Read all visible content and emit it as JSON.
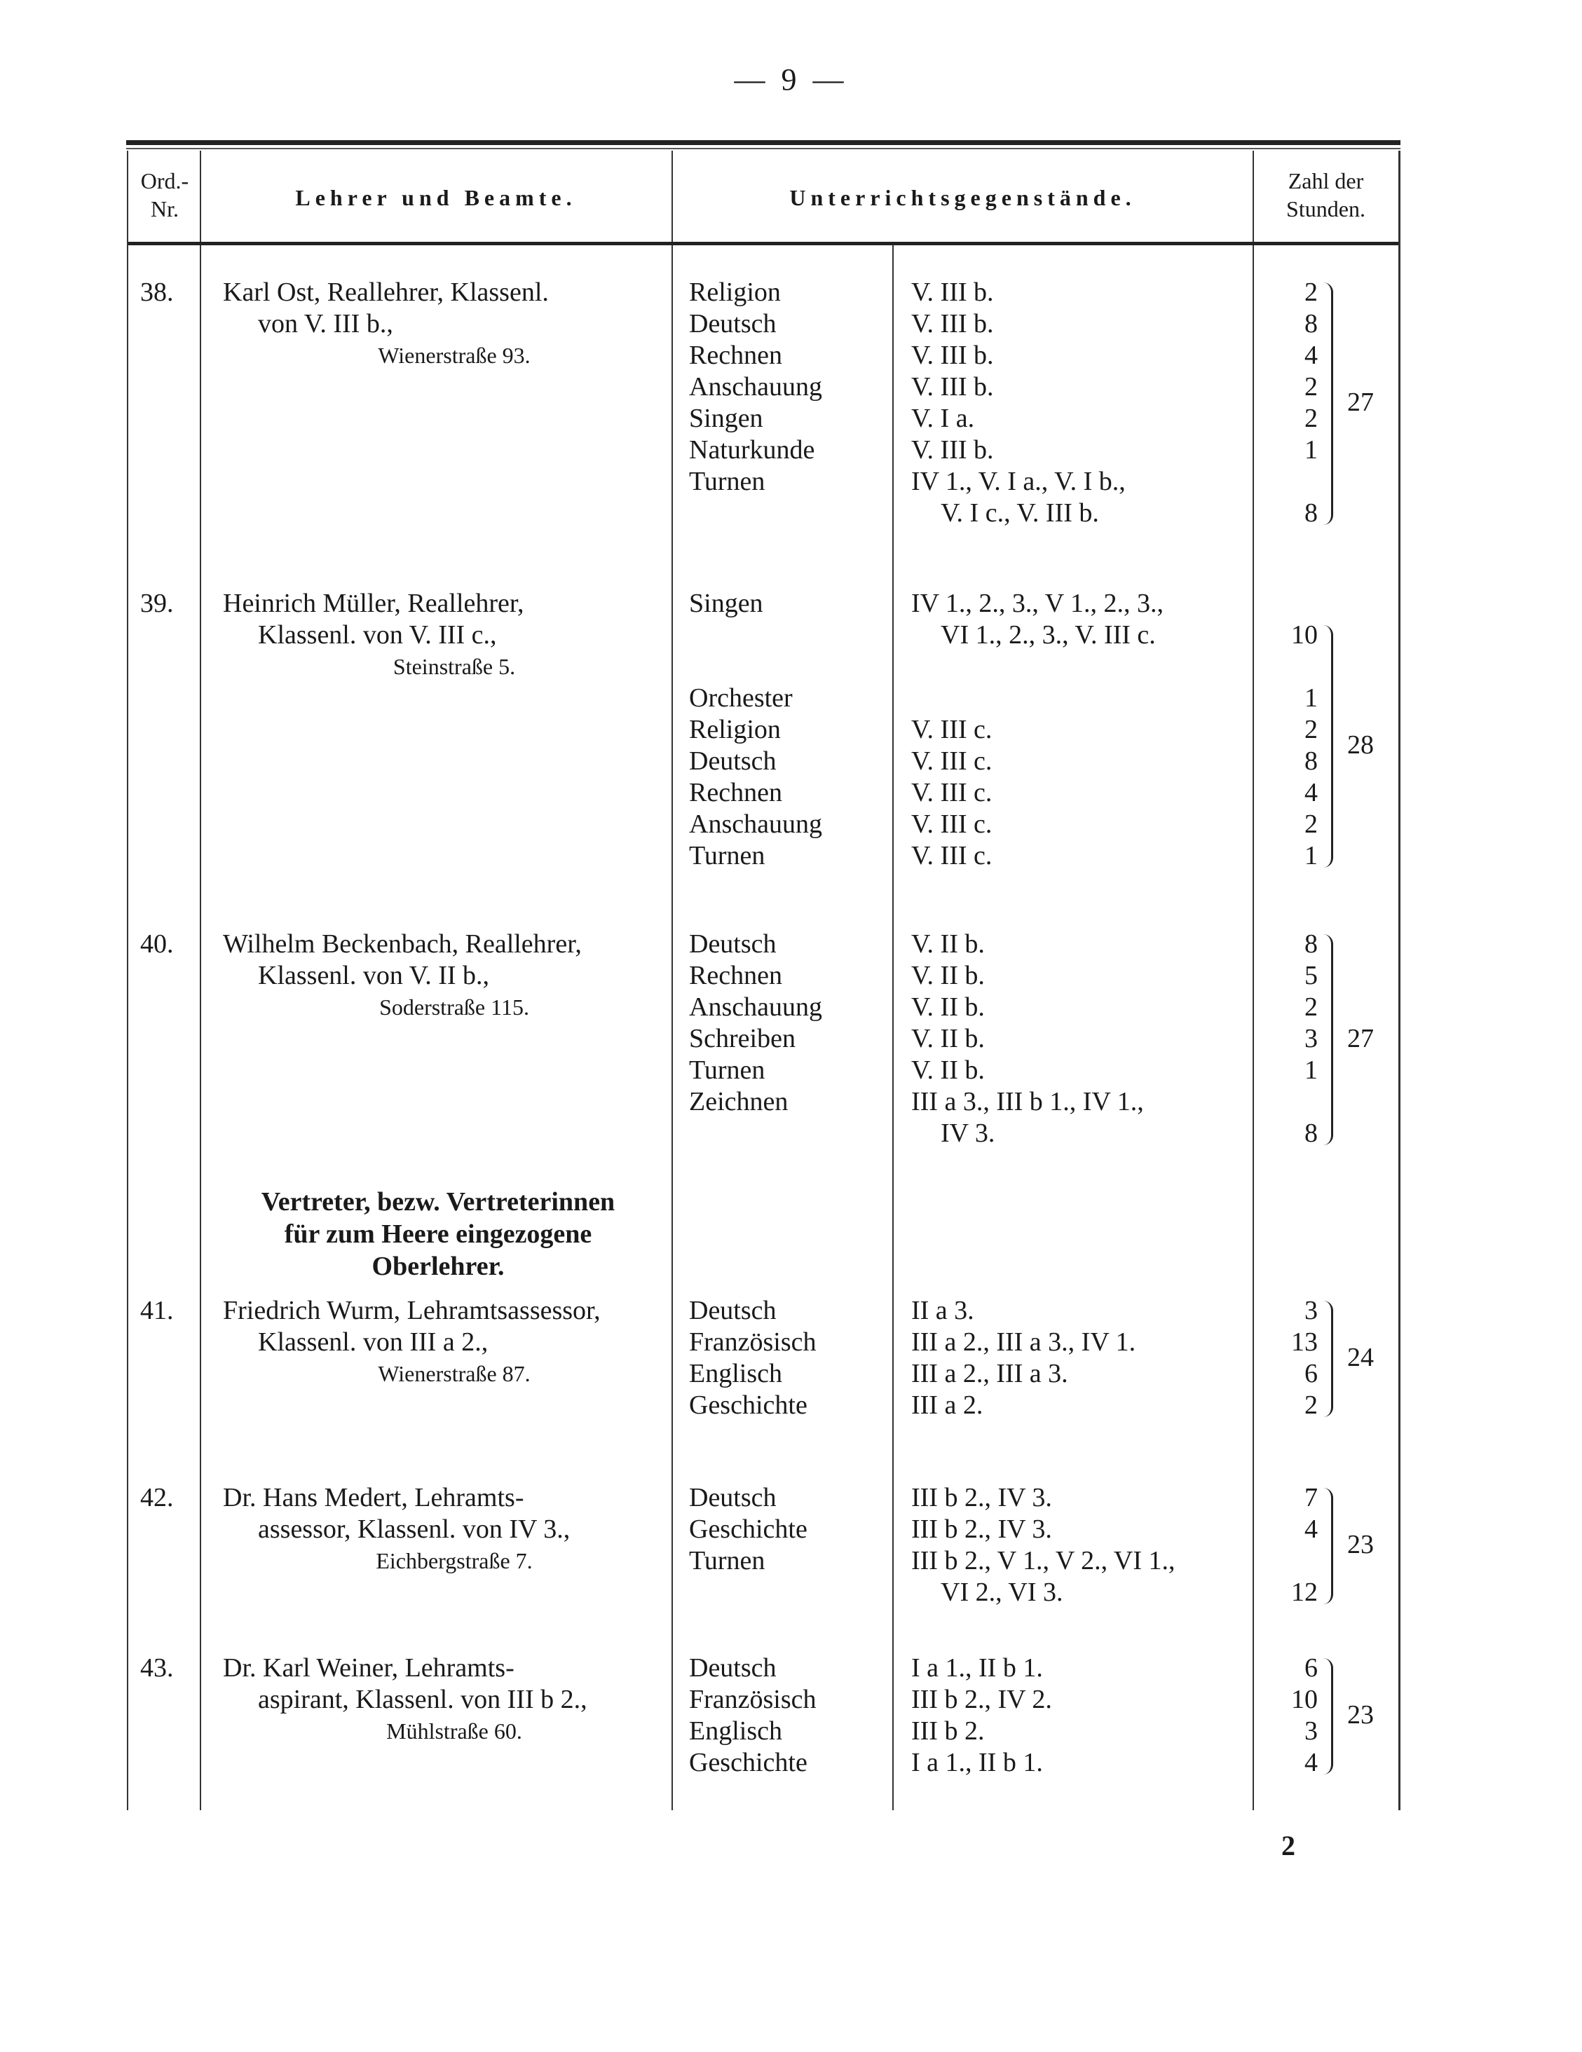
{
  "page_number": "— 9 —",
  "footer_mark": "2",
  "header": {
    "nr": [
      "Ord.-",
      "Nr."
    ],
    "teacher": "Lehrer und Beamte.",
    "subjects": "Unterrichtsgegenstände.",
    "hours": [
      "Zahl der",
      "Stunden."
    ]
  },
  "section_heading": [
    "Vertreter, bezw. Vertreterinnen",
    "für zum Heere eingezogene",
    "Oberlehrer."
  ],
  "entries": [
    {
      "nr": "38.",
      "name_lines": [
        "Karl Ost, Reallehrer, Klassenl.",
        "von V. III b.,"
      ],
      "address": "Wienerstraße 93.",
      "lines": [
        {
          "subject": "Religion",
          "classes": "V. III b.",
          "hours": "2"
        },
        {
          "subject": "Deutsch",
          "classes": "V. III b.",
          "hours": "8"
        },
        {
          "subject": "Rechnen",
          "classes": "V. III b.",
          "hours": "4"
        },
        {
          "subject": "Anschauung",
          "classes": "V. III b.",
          "hours": "2"
        },
        {
          "subject": "Singen",
          "classes": "V. I a.",
          "hours": "2"
        },
        {
          "subject": "Naturkunde",
          "classes": "V. III b.",
          "hours": "1"
        },
        {
          "subject": "Turnen",
          "classes": "IV 1., V. I a., V. I b.,",
          "hours": ""
        },
        {
          "subject": "",
          "classes": "V. I c., V. III b.",
          "hours": "8",
          "indent": true
        }
      ],
      "total": "27"
    },
    {
      "nr": "39.",
      "name_lines": [
        "Heinrich Müller, Reallehrer,",
        "Klassenl. von V. III c.,"
      ],
      "address": "Steinstraße 5.",
      "lines": [
        {
          "subject": "Singen",
          "classes": "IV 1., 2., 3., V 1., 2., 3.,",
          "hours": ""
        },
        {
          "subject": "",
          "classes": "VI 1., 2., 3., V. III c.",
          "hours": "10",
          "indent": true
        },
        {
          "subject": "",
          "classes": "",
          "hours": ""
        },
        {
          "subject": "Orchester",
          "classes": "",
          "hours": "1"
        },
        {
          "subject": "Religion",
          "classes": "V. III c.",
          "hours": "2"
        },
        {
          "subject": "Deutsch",
          "classes": "V. III c.",
          "hours": "8"
        },
        {
          "subject": "Rechnen",
          "classes": "V. III c.",
          "hours": "4"
        },
        {
          "subject": "Anschauung",
          "classes": "V. III c.",
          "hours": "2"
        },
        {
          "subject": "Turnen",
          "classes": "V. III c.",
          "hours": "1"
        }
      ],
      "total": "28"
    },
    {
      "nr": "40.",
      "name_lines": [
        "Wilhelm Beckenbach, Reallehrer,",
        "Klassenl. von V. II b.,"
      ],
      "address": "Soderstraße 115.",
      "lines": [
        {
          "subject": "Deutsch",
          "classes": "V. II b.",
          "hours": "8"
        },
        {
          "subject": "Rechnen",
          "classes": "V. II b.",
          "hours": "5"
        },
        {
          "subject": "Anschauung",
          "classes": "V. II b.",
          "hours": "2"
        },
        {
          "subject": "Schreiben",
          "classes": "V. II b.",
          "hours": "3"
        },
        {
          "subject": "Turnen",
          "classes": "V. II b.",
          "hours": "1"
        },
        {
          "subject": "Zeichnen",
          "classes": "III a 3., III b 1., IV 1.,",
          "hours": ""
        },
        {
          "subject": "",
          "classes": "IV 3.",
          "hours": "8",
          "indent": true
        }
      ],
      "total": "27"
    },
    {
      "nr": "41.",
      "name_lines": [
        "Friedrich Wurm, Lehramtsassessor,",
        "Klassenl. von III a 2.,"
      ],
      "address": "Wienerstraße 87.",
      "lines": [
        {
          "subject": "Deutsch",
          "classes": "II a 3.",
          "hours": "3"
        },
        {
          "subject": "Französisch",
          "classes": "III a 2., III a 3., IV 1.",
          "hours": "13"
        },
        {
          "subject": "Englisch",
          "classes": "III a 2., III a 3.",
          "hours": "6"
        },
        {
          "subject": "Geschichte",
          "classes": "III a 2.",
          "hours": "2"
        }
      ],
      "total": "24"
    },
    {
      "nr": "42.",
      "name_lines": [
        "Dr. Hans Medert, Lehramts-",
        "assessor, Klassenl. von IV 3.,"
      ],
      "address": "Eichbergstraße 7.",
      "lines": [
        {
          "subject": "Deutsch",
          "classes": "III b 2., IV 3.",
          "hours": "7"
        },
        {
          "subject": "Geschichte",
          "classes": "III b 2., IV 3.",
          "hours": "4"
        },
        {
          "subject": "Turnen",
          "classes": "III b 2., V 1., V 2., VI 1.,",
          "hours": ""
        },
        {
          "subject": "",
          "classes": "VI 2., VI 3.",
          "hours": "12",
          "indent": true
        }
      ],
      "total": "23"
    },
    {
      "nr": "43.",
      "name_lines": [
        "Dr. Karl Weiner, Lehramts-",
        "aspirant, Klassenl. von III b 2.,"
      ],
      "address": "Mühlstraße 60.",
      "lines": [
        {
          "subject": "Deutsch",
          "classes": "I a 1., II b 1.",
          "hours": "6"
        },
        {
          "subject": "Französisch",
          "classes": "III b 2., IV 2.",
          "hours": "10"
        },
        {
          "subject": "Englisch",
          "classes": "III b 2.",
          "hours": "3"
        },
        {
          "subject": "Geschichte",
          "classes": "I a 1., II b 1.",
          "hours": "4"
        }
      ],
      "total": "23"
    }
  ]
}
